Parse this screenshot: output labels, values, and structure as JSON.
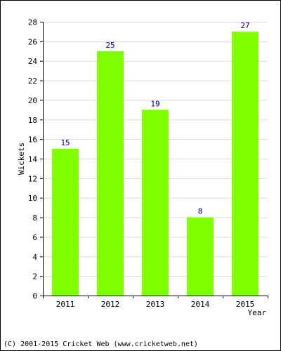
{
  "chart_data": {
    "type": "bar",
    "categories": [
      "2011",
      "2012",
      "2013",
      "2014",
      "2015"
    ],
    "values": [
      15,
      25,
      19,
      8,
      27
    ],
    "title": "",
    "xlabel": "Year",
    "ylabel": "Wickets",
    "ylim": [
      0,
      28
    ],
    "yticks": [
      0,
      2,
      4,
      6,
      8,
      10,
      12,
      14,
      16,
      18,
      20,
      22,
      24,
      26,
      28
    ],
    "grid": true,
    "legend": "none",
    "bar_color": "#80ff00",
    "label_color": "#000080",
    "grid_color": "#dddddd"
  },
  "footer": "(C) 2001-2015 Cricket Web (www.cricketweb.net)"
}
